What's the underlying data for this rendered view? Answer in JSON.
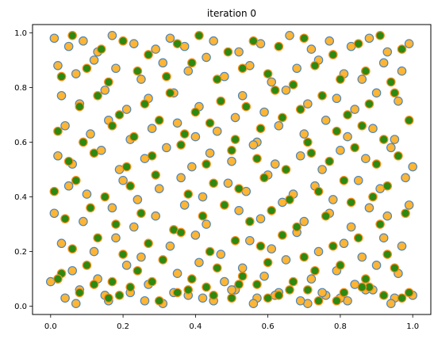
{
  "chart_data": {
    "type": "scatter",
    "title": "iteration 0",
    "xlabel": "",
    "ylabel": "",
    "xlim": [
      -0.05,
      1.05
    ],
    "ylim": [
      -0.03,
      1.03
    ],
    "xticks": [
      0.0,
      0.2,
      0.4,
      0.6,
      0.8,
      1.0
    ],
    "yticks": [
      0.0,
      0.2,
      0.4,
      0.6,
      0.8,
      1.0
    ],
    "xtick_labels": [
      "0.0",
      "0.2",
      "0.4",
      "0.6",
      "0.8",
      "1.0"
    ],
    "ytick_labels": [
      "0.0",
      "0.2",
      "0.4",
      "0.6",
      "0.8",
      "1.0"
    ],
    "grid": false,
    "legend": "none",
    "colors": {
      "orange_fill": "#ffb534",
      "orange_edge": "#4f86b8",
      "green_fill": "#2c8a12",
      "green_edge": "#ff8c1a"
    },
    "series": [
      {
        "style": "orange-with-blue-edge",
        "x": [
          0.01,
          0.05,
          0.09,
          0.13,
          0.17,
          0.23,
          0.29,
          0.33,
          0.37,
          0.45,
          0.52,
          0.58,
          0.66,
          0.72,
          0.77,
          0.83,
          0.88,
          0.93,
          0.99,
          0.02,
          0.07,
          0.12,
          0.18,
          0.25,
          0.31,
          0.38,
          0.43,
          0.48,
          0.55,
          0.61,
          0.68,
          0.74,
          0.81,
          0.86,
          0.92,
          0.97,
          0.03,
          0.08,
          0.15,
          0.21,
          0.27,
          0.34,
          0.41,
          0.47,
          0.53,
          0.59,
          0.65,
          0.71,
          0.79,
          0.84,
          0.9,
          0.96,
          0.04,
          0.11,
          0.16,
          0.22,
          0.28,
          0.35,
          0.4,
          0.46,
          0.51,
          0.57,
          0.63,
          0.7,
          0.76,
          0.82,
          0.89,
          0.95,
          0.02,
          0.06,
          0.14,
          0.19,
          0.26,
          0.32,
          0.39,
          0.44,
          0.5,
          0.56,
          0.62,
          0.69,
          0.75,
          0.8,
          0.87,
          0.94,
          1.0,
          0.05,
          0.1,
          0.2,
          0.24,
          0.3,
          0.36,
          0.42,
          0.49,
          0.54,
          0.6,
          0.67,
          0.73,
          0.78,
          0.85,
          0.91,
          0.98,
          0.01,
          0.09,
          0.17,
          0.23,
          0.29,
          0.37,
          0.43,
          0.52,
          0.58,
          0.64,
          0.7,
          0.77,
          0.83,
          0.88,
          0.93,
          0.99,
          0.03,
          0.12,
          0.18,
          0.25,
          0.33,
          0.4,
          0.47,
          0.55,
          0.61,
          0.68,
          0.74,
          0.81,
          0.86,
          0.92,
          0.97,
          0.06,
          0.13,
          0.21,
          0.27,
          0.35,
          0.41,
          0.48,
          0.53,
          0.59,
          0.65,
          0.72,
          0.79,
          0.84,
          0.9,
          0.96,
          0.04,
          0.08,
          0.16,
          0.22,
          0.31,
          0.38,
          0.45,
          0.51,
          0.57,
          0.63,
          0.71,
          0.76,
          0.82,
          0.89,
          0.95,
          0.0,
          0.07,
          0.15,
          0.26,
          0.34,
          0.42,
          0.5,
          0.56,
          0.62,
          0.69,
          0.75,
          0.8,
          0.87,
          0.94,
          1.0
        ],
        "y": [
          0.98,
          0.95,
          0.97,
          0.93,
          0.99,
          0.96,
          0.94,
          0.98,
          0.95,
          0.97,
          0.93,
          0.96,
          0.99,
          0.94,
          0.97,
          0.95,
          0.98,
          0.93,
          0.96,
          0.88,
          0.85,
          0.9,
          0.87,
          0.83,
          0.89,
          0.86,
          0.91,
          0.84,
          0.88,
          0.82,
          0.87,
          0.9,
          0.85,
          0.83,
          0.89,
          0.86,
          0.77,
          0.74,
          0.79,
          0.72,
          0.76,
          0.78,
          0.73,
          0.75,
          0.77,
          0.71,
          0.79,
          0.74,
          0.76,
          0.72,
          0.78,
          0.75,
          0.66,
          0.63,
          0.68,
          0.61,
          0.65,
          0.67,
          0.62,
          0.64,
          0.69,
          0.6,
          0.66,
          0.63,
          0.68,
          0.62,
          0.65,
          0.61,
          0.55,
          0.52,
          0.57,
          0.5,
          0.54,
          0.58,
          0.51,
          0.56,
          0.53,
          0.59,
          0.52,
          0.55,
          0.5,
          0.57,
          0.54,
          0.58,
          0.51,
          0.44,
          0.41,
          0.46,
          0.39,
          0.43,
          0.47,
          0.4,
          0.45,
          0.42,
          0.48,
          0.41,
          0.44,
          0.39,
          0.46,
          0.43,
          0.47,
          0.34,
          0.31,
          0.36,
          0.29,
          0.33,
          0.37,
          0.3,
          0.35,
          0.32,
          0.38,
          0.31,
          0.34,
          0.29,
          0.36,
          0.33,
          0.37,
          0.23,
          0.2,
          0.25,
          0.18,
          0.22,
          0.26,
          0.19,
          0.24,
          0.21,
          0.27,
          0.2,
          0.23,
          0.18,
          0.25,
          0.22,
          0.13,
          0.1,
          0.15,
          0.08,
          0.12,
          0.16,
          0.09,
          0.14,
          0.11,
          0.17,
          0.1,
          0.13,
          0.08,
          0.15,
          0.12,
          0.03,
          0.06,
          0.02,
          0.05,
          0.01,
          0.04,
          0.02,
          0.06,
          0.03,
          0.05,
          0.01,
          0.04,
          0.02,
          0.06,
          0.03,
          0.09,
          0.01,
          0.04,
          0.02,
          0.05,
          0.03,
          0.06,
          0.01,
          0.04,
          0.02,
          0.05,
          0.03,
          0.06,
          0.01,
          0.04
        ]
      },
      {
        "style": "green-with-orange-edge",
        "x": [
          0.06,
          0.14,
          0.2,
          0.27,
          0.35,
          0.41,
          0.49,
          0.56,
          0.63,
          0.7,
          0.78,
          0.85,
          0.91,
          0.97,
          0.03,
          0.1,
          0.16,
          0.24,
          0.32,
          0.39,
          0.46,
          0.53,
          0.6,
          0.67,
          0.73,
          0.8,
          0.87,
          0.94,
          0.08,
          0.13,
          0.19,
          0.26,
          0.33,
          0.4,
          0.47,
          0.54,
          0.62,
          0.69,
          0.75,
          0.82,
          0.88,
          0.95,
          0.02,
          0.09,
          0.17,
          0.23,
          0.3,
          0.37,
          0.44,
          0.51,
          0.58,
          0.64,
          0.71,
          0.79,
          0.86,
          0.92,
          0.99,
          0.05,
          0.12,
          0.21,
          0.28,
          0.36,
          0.43,
          0.5,
          0.57,
          0.65,
          0.72,
          0.77,
          0.84,
          0.9,
          0.96,
          0.01,
          0.07,
          0.15,
          0.22,
          0.29,
          0.38,
          0.45,
          0.52,
          0.59,
          0.66,
          0.74,
          0.81,
          0.89,
          0.93,
          0.04,
          0.11,
          0.18,
          0.25,
          0.34,
          0.42,
          0.48,
          0.55,
          0.61,
          0.68,
          0.76,
          0.83,
          0.91,
          0.98,
          0.06,
          0.13,
          0.2,
          0.27,
          0.36,
          0.44,
          0.51,
          0.58,
          0.64,
          0.7,
          0.78,
          0.85,
          0.93,
          0.03,
          0.1,
          0.17,
          0.24,
          0.31,
          0.39,
          0.46,
          0.53,
          0.6,
          0.67,
          0.73,
          0.8,
          0.87,
          0.95,
          0.08,
          0.16,
          0.22,
          0.3,
          0.38,
          0.45,
          0.52,
          0.6,
          0.66,
          0.74,
          0.81,
          0.88,
          0.97,
          0.02,
          0.12,
          0.19,
          0.28,
          0.35,
          0.43,
          0.5,
          0.57,
          0.63,
          0.71,
          0.79,
          0.86,
          0.92,
          0.99
        ],
        "y": [
          0.99,
          0.94,
          0.97,
          0.92,
          0.96,
          0.99,
          0.93,
          0.97,
          0.95,
          0.98,
          0.92,
          0.96,
          0.99,
          0.94,
          0.84,
          0.87,
          0.82,
          0.86,
          0.84,
          0.89,
          0.83,
          0.87,
          0.85,
          0.81,
          0.88,
          0.83,
          0.86,
          0.82,
          0.73,
          0.77,
          0.7,
          0.74,
          0.78,
          0.71,
          0.75,
          0.73,
          0.79,
          0.72,
          0.77,
          0.7,
          0.74,
          0.78,
          0.64,
          0.6,
          0.66,
          0.62,
          0.68,
          0.63,
          0.67,
          0.61,
          0.65,
          0.69,
          0.6,
          0.64,
          0.66,
          0.61,
          0.68,
          0.53,
          0.56,
          0.51,
          0.55,
          0.59,
          0.52,
          0.57,
          0.54,
          0.5,
          0.56,
          0.53,
          0.58,
          0.52,
          0.55,
          0.42,
          0.46,
          0.4,
          0.44,
          0.48,
          0.41,
          0.45,
          0.43,
          0.47,
          0.39,
          0.42,
          0.46,
          0.4,
          0.44,
          0.32,
          0.36,
          0.3,
          0.34,
          0.28,
          0.33,
          0.37,
          0.31,
          0.35,
          0.29,
          0.33,
          0.38,
          0.3,
          0.34,
          0.21,
          0.25,
          0.19,
          0.23,
          0.27,
          0.2,
          0.24,
          0.22,
          0.26,
          0.18,
          0.22,
          0.25,
          0.19,
          0.12,
          0.15,
          0.09,
          0.13,
          0.17,
          0.1,
          0.14,
          0.11,
          0.16,
          0.09,
          0.13,
          0.15,
          0.1,
          0.14,
          0.05,
          0.03,
          0.07,
          0.02,
          0.06,
          0.04,
          0.08,
          0.03,
          0.06,
          0.02,
          0.05,
          0.07,
          0.03,
          0.1,
          0.08,
          0.04,
          0.09,
          0.05,
          0.07,
          0.03,
          0.08,
          0.04,
          0.06,
          0.02,
          0.07,
          0.04,
          0.05
        ]
      }
    ]
  }
}
